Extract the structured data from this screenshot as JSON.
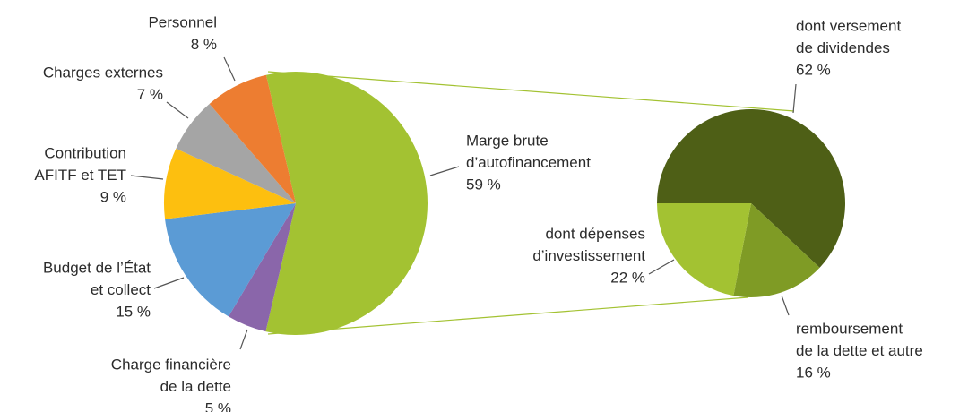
{
  "chart_data": [
    {
      "type": "pie",
      "categories": [
        [
          "Marge brute",
          "d’autofinancement"
        ],
        [
          "Charge financière",
          "de la dette"
        ],
        [
          "Budget de l’État",
          "et collect"
        ],
        [
          "Contribution",
          "AFITF et TET"
        ],
        [
          "Charges externes"
        ],
        [
          "Personnel"
        ]
      ],
      "values": [
        59,
        5,
        15,
        9,
        7,
        8
      ],
      "value_labels": [
        "59 %",
        "5 %",
        "15 %",
        "9 %",
        "7 %",
        "8 %"
      ],
      "colors": [
        "#a3c232",
        "#8a66aa",
        "#5b9bd5",
        "#fdbf0f",
        "#a5a5a5",
        "#ed7d31"
      ]
    },
    {
      "type": "pie",
      "categories": [
        [
          "dont versement",
          "de dividendes"
        ],
        [
          "remboursement",
          "de la dette et autre"
        ],
        [
          "dont dépenses",
          "d’investissement"
        ]
      ],
      "values": [
        62,
        16,
        22
      ],
      "value_labels": [
        "62 %",
        "16 %",
        "22 %"
      ],
      "colors": [
        "#4e5f16",
        "#7f9b25",
        "#a3c232"
      ]
    }
  ]
}
